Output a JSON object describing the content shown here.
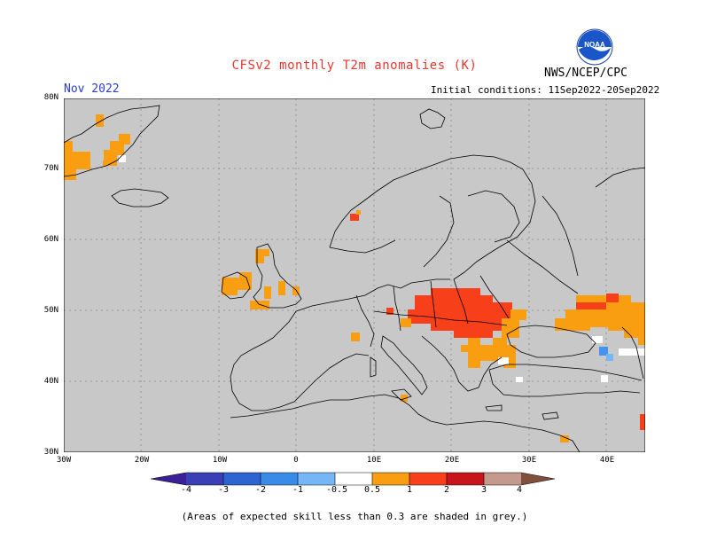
{
  "header": {
    "title": "CFSv2 monthly T2m anomalies (K)",
    "agency": "NWS/NCEP/CPC",
    "logo_text": "NOAA",
    "valid_month": "Nov 2022",
    "initial_conditions": "Initial conditions: 11Sep2022-20Sep2022"
  },
  "map": {
    "lat_labels": [
      "80N",
      "70N",
      "60N",
      "50N",
      "40N",
      "30N"
    ],
    "lon_labels": [
      "30W",
      "20W",
      "10W",
      "0",
      "10E",
      "20E",
      "30E",
      "40E"
    ],
    "background_color": "#c8c8c8",
    "region": "Europe"
  },
  "legend": {
    "labels": [
      "-4",
      "-3",
      "-2",
      "-1",
      "-0.5",
      "0.5",
      "1",
      "2",
      "3",
      "4"
    ],
    "colors": [
      "#3b1f96",
      "#2d49c8",
      "#2e6fdc",
      "#4394ee",
      "#76b6f6",
      "#ffffff",
      "#f99e10",
      "#f7401a",
      "#c8141a",
      "#900a0a",
      "#c49a8f",
      "#80503c"
    ]
  },
  "footnote": "(Areas of expected skill less than 0.3 are shaded in grey.)"
}
